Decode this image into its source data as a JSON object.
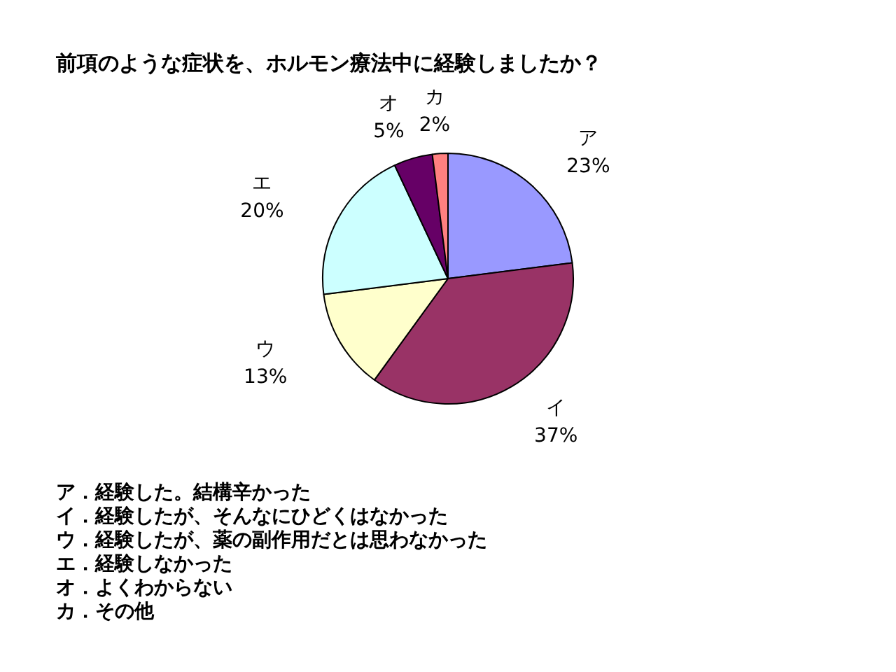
{
  "chart_data": {
    "type": "pie",
    "title": "前項のような症状を、ホルモン療法中に経験しましたか？",
    "categories": [
      "ア",
      "イ",
      "ウ",
      "エ",
      "オ",
      "カ"
    ],
    "values": [
      23,
      37,
      13,
      20,
      5,
      2
    ],
    "colors": [
      "#9999ff",
      "#993366",
      "#ffffcc",
      "#ccffff",
      "#660066",
      "#ff8080"
    ],
    "value_labels": [
      "23%",
      "37%",
      "13%",
      "20%",
      "5%",
      "2%"
    ],
    "annotations": [
      "ア．経験した。結構辛かった",
      "イ．経験したが、そんなにひどくはなかった",
      "ウ．経験したが、薬の副作用だとは思わなかった",
      "エ．経験しなかった",
      "オ．よくわからない",
      "カ．その他"
    ]
  }
}
